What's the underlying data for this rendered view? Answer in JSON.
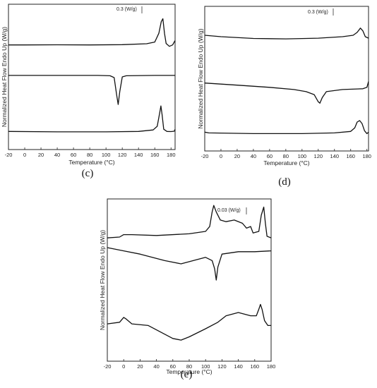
{
  "chart_data": [
    {
      "panel": "(c)",
      "type": "line",
      "xlabel": "Temperature (°C)",
      "ylabel": "Normalized Heat Flow Endo Up (W/g)",
      "scale_label": "0.3 (W/g)",
      "xlim": [
        -20,
        185
      ],
      "x_ticks": [
        -20,
        0,
        20,
        40,
        60,
        80,
        100,
        120,
        140,
        160,
        180
      ],
      "grid": false,
      "legend": "none",
      "series": [
        {
          "values": [
            [
              -20,
              0.72
            ],
            [
              0,
              0.72
            ],
            [
              40,
              0.721
            ],
            [
              80,
              0.72
            ],
            [
              120,
              0.722
            ],
            [
              150,
              0.728
            ],
            [
              160,
              0.74
            ],
            [
              165,
              0.8
            ],
            [
              168,
              0.88
            ],
            [
              170,
              0.9
            ],
            [
              172,
              0.8
            ],
            [
              174,
              0.73
            ],
            [
              178,
              0.71
            ],
            [
              182,
              0.72
            ],
            [
              185,
              0.75
            ]
          ]
        },
        {
          "values": [
            [
              -20,
              0.51
            ],
            [
              40,
              0.51
            ],
            [
              90,
              0.51
            ],
            [
              105,
              0.508
            ],
            [
              110,
              0.495
            ],
            [
              113,
              0.38
            ],
            [
              115,
              0.31
            ],
            [
              117,
              0.4
            ],
            [
              120,
              0.5
            ],
            [
              125,
              0.508
            ],
            [
              160,
              0.51
            ],
            [
              185,
              0.51
            ]
          ]
        },
        {
          "values": [
            [
              -20,
              0.125
            ],
            [
              40,
              0.122
            ],
            [
              100,
              0.122
            ],
            [
              140,
              0.125
            ],
            [
              158,
              0.135
            ],
            [
              163,
              0.16
            ],
            [
              166,
              0.25
            ],
            [
              167.5,
              0.3
            ],
            [
              169,
              0.24
            ],
            [
              171,
              0.14
            ],
            [
              175,
              0.125
            ],
            [
              180,
              0.124
            ],
            [
              184,
              0.126
            ],
            [
              185,
              0.14
            ]
          ]
        }
      ]
    },
    {
      "panel": "(d)",
      "type": "line",
      "xlabel": "Temperature (°C)",
      "ylabel": "Normalized Heat Flow Endo Up (W/g)",
      "scale_label": "0.3 (W/g)",
      "xlim": [
        -20,
        182
      ],
      "x_ticks": [
        -20,
        0,
        20,
        40,
        60,
        80,
        100,
        120,
        140,
        160,
        180
      ],
      "grid": false,
      "legend": "none",
      "series": [
        {
          "values": [
            [
              -20,
              0.8
            ],
            [
              0,
              0.79
            ],
            [
              40,
              0.778
            ],
            [
              80,
              0.775
            ],
            [
              120,
              0.78
            ],
            [
              150,
              0.79
            ],
            [
              163,
              0.8
            ],
            [
              168,
              0.82
            ],
            [
              172,
              0.85
            ],
            [
              175,
              0.83
            ],
            [
              178,
              0.79
            ],
            [
              182,
              0.78
            ]
          ]
        },
        {
          "values": [
            [
              -20,
              0.47
            ],
            [
              20,
              0.455
            ],
            [
              60,
              0.44
            ],
            [
              90,
              0.425
            ],
            [
              105,
              0.41
            ],
            [
              115,
              0.39
            ],
            [
              120,
              0.34
            ],
            [
              122,
              0.33
            ],
            [
              125,
              0.37
            ],
            [
              130,
              0.41
            ],
            [
              150,
              0.425
            ],
            [
              175,
              0.43
            ],
            [
              180,
              0.44
            ],
            [
              182,
              0.48
            ]
          ]
        },
        {
          "values": [
            [
              -20,
              0.13
            ],
            [
              -15,
              0.125
            ],
            [
              40,
              0.12
            ],
            [
              100,
              0.12
            ],
            [
              140,
              0.125
            ],
            [
              160,
              0.135
            ],
            [
              165,
              0.16
            ],
            [
              168,
              0.2
            ],
            [
              171,
              0.21
            ],
            [
              174,
              0.19
            ],
            [
              177,
              0.14
            ],
            [
              180,
              0.12
            ],
            [
              182,
              0.13
            ]
          ]
        }
      ]
    },
    {
      "panel": "(e)",
      "type": "line",
      "xlabel": "Temperature (°C)",
      "ylabel": "Normalized Heat Flow Endo Up (W/g)",
      "scale_label": "0.03 (W/g)",
      "xlim": [
        -20,
        180
      ],
      "x_ticks": [
        -20,
        0,
        20,
        40,
        60,
        80,
        100,
        120,
        140,
        160,
        180
      ],
      "grid": false,
      "legend": "none",
      "series": [
        {
          "values": [
            [
              -20,
              0.76
            ],
            [
              -5,
              0.765
            ],
            [
              0,
              0.78
            ],
            [
              10,
              0.78
            ],
            [
              40,
              0.775
            ],
            [
              80,
              0.785
            ],
            [
              100,
              0.8
            ],
            [
              105,
              0.83
            ],
            [
              108,
              0.92
            ],
            [
              110,
              0.96
            ],
            [
              113,
              0.92
            ],
            [
              118,
              0.87
            ],
            [
              125,
              0.86
            ],
            [
              135,
              0.87
            ],
            [
              145,
              0.85
            ],
            [
              150,
              0.82
            ],
            [
              155,
              0.83
            ],
            [
              158,
              0.79
            ],
            [
              165,
              0.8
            ],
            [
              168,
              0.9
            ],
            [
              171,
              0.95
            ],
            [
              173,
              0.85
            ],
            [
              175,
              0.77
            ],
            [
              180,
              0.76
            ]
          ]
        },
        {
          "values": [
            [
              -20,
              0.7
            ],
            [
              0,
              0.68
            ],
            [
              20,
              0.66
            ],
            [
              50,
              0.62
            ],
            [
              70,
              0.6
            ],
            [
              85,
              0.62
            ],
            [
              100,
              0.64
            ],
            [
              108,
              0.62
            ],
            [
              111,
              0.57
            ],
            [
              113,
              0.5
            ],
            [
              115,
              0.58
            ],
            [
              120,
              0.66
            ],
            [
              140,
              0.675
            ],
            [
              160,
              0.675
            ],
            [
              180,
              0.68
            ]
          ]
        },
        {
          "values": [
            [
              -20,
              0.23
            ],
            [
              -5,
              0.24
            ],
            [
              0,
              0.27
            ],
            [
              3,
              0.26
            ],
            [
              10,
              0.23
            ],
            [
              30,
              0.22
            ],
            [
              60,
              0.14
            ],
            [
              70,
              0.13
            ],
            [
              80,
              0.15
            ],
            [
              100,
              0.2
            ],
            [
              115,
              0.24
            ],
            [
              125,
              0.28
            ],
            [
              140,
              0.3
            ],
            [
              155,
              0.28
            ],
            [
              162,
              0.28
            ],
            [
              165,
              0.32
            ],
            [
              167,
              0.35
            ],
            [
              169,
              0.32
            ],
            [
              172,
              0.25
            ],
            [
              176,
              0.22
            ],
            [
              180,
              0.22
            ]
          ]
        }
      ]
    }
  ]
}
